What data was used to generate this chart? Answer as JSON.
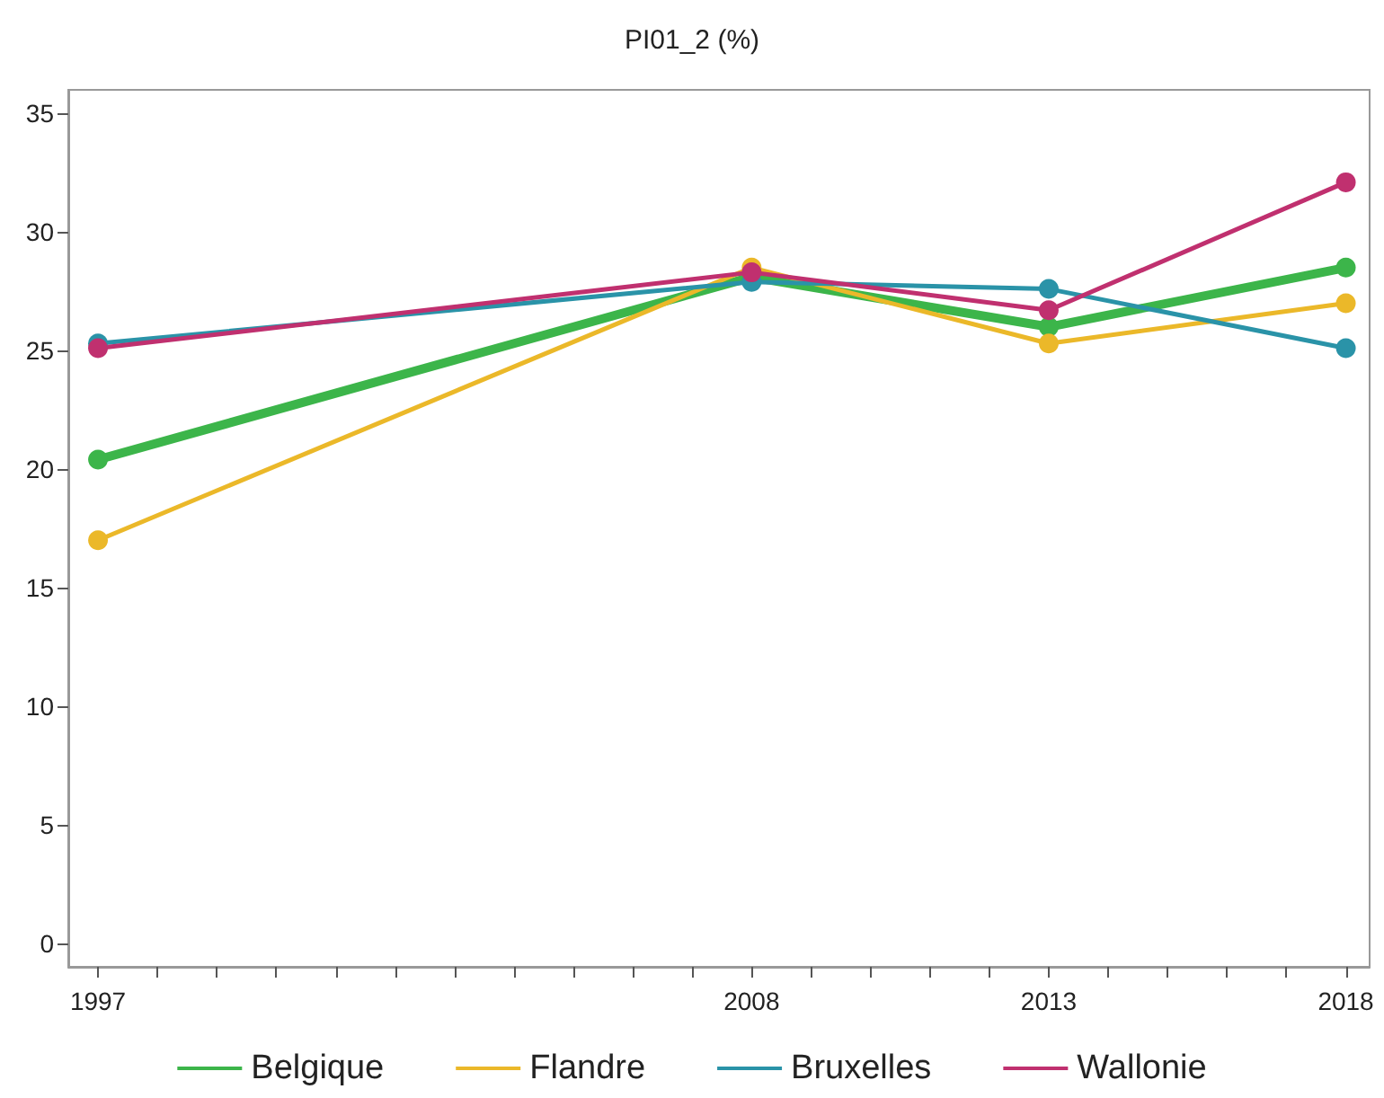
{
  "chart_data": {
    "type": "line",
    "title": "PI01_2 (%)",
    "x": [
      1997,
      2008,
      2013,
      2018
    ],
    "series": [
      {
        "name": "Belgique",
        "color": "#3cb54a",
        "values": [
          20.4,
          28.1,
          26.0,
          28.5
        ]
      },
      {
        "name": "Flandre",
        "color": "#ebb829",
        "values": [
          17.0,
          28.5,
          25.3,
          27.0
        ]
      },
      {
        "name": "Bruxelles",
        "color": "#2a93a8",
        "values": [
          25.3,
          27.9,
          27.6,
          25.1
        ]
      },
      {
        "name": "Wallonie",
        "color": "#c0306f",
        "values": [
          25.1,
          28.3,
          26.7,
          32.1
        ]
      }
    ],
    "xlim": [
      1996.5,
      2018.4
    ],
    "xticks": [
      1997,
      {
        "value": 1998,
        "label": null
      },
      {
        "value": 1999,
        "label": null
      },
      {
        "value": 2000,
        "label": null
      },
      {
        "value": 2001,
        "label": null
      },
      {
        "value": 2002,
        "label": null
      },
      {
        "value": 2003,
        "label": null
      },
      {
        "value": 2004,
        "label": null
      },
      {
        "value": 2005,
        "label": null
      },
      {
        "value": 2006,
        "label": null
      },
      {
        "value": 2007,
        "label": null
      },
      2008,
      {
        "value": 2009,
        "label": null
      },
      {
        "value": 2010,
        "label": null
      },
      {
        "value": 2011,
        "label": null
      },
      {
        "value": 2012,
        "label": null
      },
      2013,
      {
        "value": 2014,
        "label": null
      },
      {
        "value": 2015,
        "label": null
      },
      {
        "value": 2016,
        "label": null
      },
      {
        "value": 2017,
        "label": null
      },
      2018
    ],
    "ylim": [
      -1,
      36
    ],
    "yticks": [
      0,
      5,
      10,
      15,
      20,
      25,
      30,
      35
    ],
    "grid": false,
    "legend": "bottom",
    "marker": "circle",
    "line_style": "solid"
  }
}
